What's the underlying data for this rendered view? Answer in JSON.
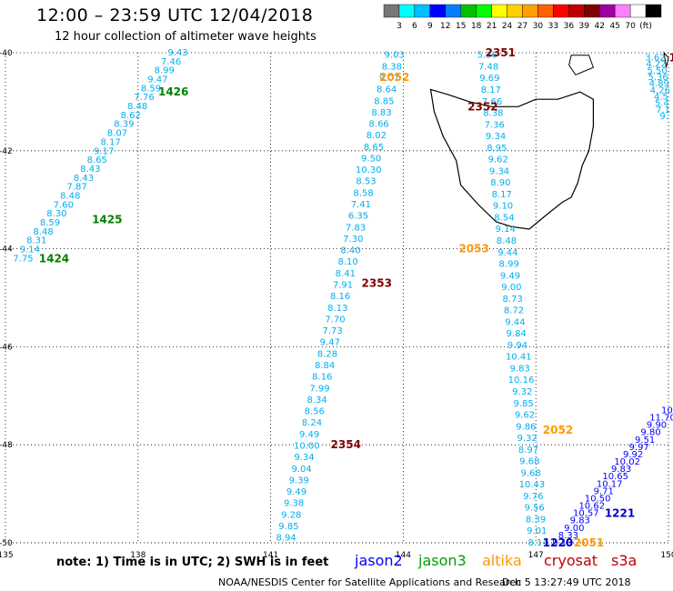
{
  "header": {
    "title": "12:00 – 23:59 UTC 12/04/2018",
    "subtitle": "12 hour collection of altimeter wave heights"
  },
  "colorbar": {
    "colors": [
      "#777777",
      "#00ffff",
      "#00bfff",
      "#0000ff",
      "#0080ff",
      "#00c000",
      "#00ff00",
      "#ffff00",
      "#ffd000",
      "#ffa000",
      "#ff6000",
      "#ff0000",
      "#c00000",
      "#800000",
      "#a000a0",
      "#ff80ff",
      "#ffffff",
      "#000000"
    ],
    "tick_labels": [
      "3",
      "6",
      "9",
      "12",
      "15",
      "18",
      "21",
      "24",
      "27",
      "30",
      "33",
      "36",
      "39",
      "42",
      "45",
      "70",
      "(ft)"
    ]
  },
  "axes": {
    "lat_labels": [
      "-40",
      "-42",
      "-44",
      "-46",
      "-48",
      "-50"
    ],
    "lon_labels": [
      "135",
      "138",
      "141",
      "144",
      "147",
      "150"
    ]
  },
  "map_data": {
    "lon_range": [
      135,
      150
    ],
    "lat_range": [
      -50,
      -40
    ],
    "tracks": [
      {
        "color": "#00aeef",
        "labels": [
          "9.43",
          "7.46",
          "8.99",
          "9.47",
          "8.59",
          "7.76",
          "8.48",
          "8.62",
          "8.39",
          "8.07",
          "8.17",
          "9.17",
          "8.65",
          "8.43",
          "8.43",
          "7.87",
          "8.48",
          "7.60",
          "8.30",
          "8.59",
          "8.48",
          "8.31",
          "9.14",
          "7.75"
        ]
      },
      {
        "color": "#00aeef",
        "labels": [
          "9.03",
          "8.38",
          "9.07",
          "8.64",
          "8.85",
          "8.83",
          "8.66",
          "8.02",
          "8.65",
          "9.50",
          "10.30",
          "8.53",
          "8.58",
          "7.41",
          "6.35",
          "7.83",
          "7.30",
          "8.40",
          "8.10",
          "8.41",
          "7.91",
          "8.16",
          "8.13",
          "7.70",
          "7.73",
          "9.47",
          "8.28",
          "8.84",
          "8.16",
          "7.99",
          "8.34",
          "8.56",
          "8.24",
          "9.49",
          "10.00",
          "9.34",
          "9.04",
          "9.39",
          "9.49",
          "9.38",
          "9.28",
          "9.85",
          "8.94"
        ]
      },
      {
        "color": "#00aeef",
        "labels": [
          "5.36",
          "7.48",
          "9.69",
          "8.17",
          "7.66",
          "8.38",
          "7.36",
          "9.34",
          "8.95",
          "9.62",
          "9.34",
          "8.90",
          "8.17",
          "9.10",
          "8.54",
          "9.14",
          "8.48",
          "9.44",
          "8.99",
          "9.49",
          "9.00",
          "8.73",
          "8.72",
          "9.44",
          "9.84",
          "9.94",
          "10.41",
          "9.83",
          "10.16",
          "9.32",
          "9.85",
          "9.62",
          "9.86",
          "9.32",
          "8.97",
          "9.68",
          "9.68",
          "10.43",
          "9.76",
          "9.56",
          "8.39",
          "9.01",
          "8.14"
        ]
      },
      {
        "color": "#00aeef",
        "labels": [
          "3.62",
          "4.22",
          "5.50",
          "5.36",
          "4.89",
          "4.26",
          "4.5",
          "5.4",
          "7.1",
          "9."
        ]
      },
      {
        "color": "#0000ff",
        "labels": [
          "10.",
          "11.70",
          "9.90",
          "9.80",
          "9.51",
          "9.97",
          "9.92",
          "10.02",
          "9.83",
          "10.65",
          "10.17",
          "9.71",
          "10.50",
          "10.62",
          "10.57",
          "9.83",
          "9.00",
          "8.33",
          "9.13"
        ]
      }
    ],
    "time_labels": [
      {
        "text": "1426",
        "color": "#008000",
        "lon": 138.8,
        "lat": -40.8
      },
      {
        "text": "1425",
        "color": "#008000",
        "lon": 137.3,
        "lat": -43.4
      },
      {
        "text": "1424",
        "color": "#008000",
        "lon": 136.1,
        "lat": -44.2
      },
      {
        "text": "2351",
        "color": "#800000",
        "lon": 146.2,
        "lat": -40.0
      },
      {
        "text": "2052",
        "color": "#ff9900",
        "lon": 143.8,
        "lat": -40.5
      },
      {
        "text": "2352",
        "color": "#800000",
        "lon": 145.8,
        "lat": -41.1
      },
      {
        "text": "2053",
        "color": "#ff9900",
        "lon": 145.6,
        "lat": -44.0
      },
      {
        "text": "2353",
        "color": "#800000",
        "lon": 143.4,
        "lat": -44.7
      },
      {
        "text": "2052",
        "color": "#ff9900",
        "lon": 147.5,
        "lat": -47.7
      },
      {
        "text": "2354",
        "color": "#800000",
        "lon": 142.7,
        "lat": -48.0
      },
      {
        "text": "1221",
        "color": "#0000c0",
        "lon": 148.9,
        "lat": -49.4
      },
      {
        "text": "1220",
        "color": "#0000c0",
        "lon": 147.5,
        "lat": -50.0
      },
      {
        "text": "2051",
        "color": "#ff9900",
        "lon": 148.2,
        "lat": -50.0
      },
      {
        "text": "1",
        "color": "#800000",
        "lon": 150.1,
        "lat": -40.1
      }
    ]
  },
  "footer": {
    "note": "note: 1) Time is in UTC; 2) SWH is in feet",
    "sat_jason2": "jason2",
    "sat_jason3": "jason3",
    "sat_altika": "altika",
    "sat_cryosat": "cryosat",
    "sat_s3a": "s3a",
    "credit": "NOAA/NESDIS Center for Satellite Applications and Research",
    "timestamp": "Dec  5 13:27:49 UTC 2018"
  }
}
